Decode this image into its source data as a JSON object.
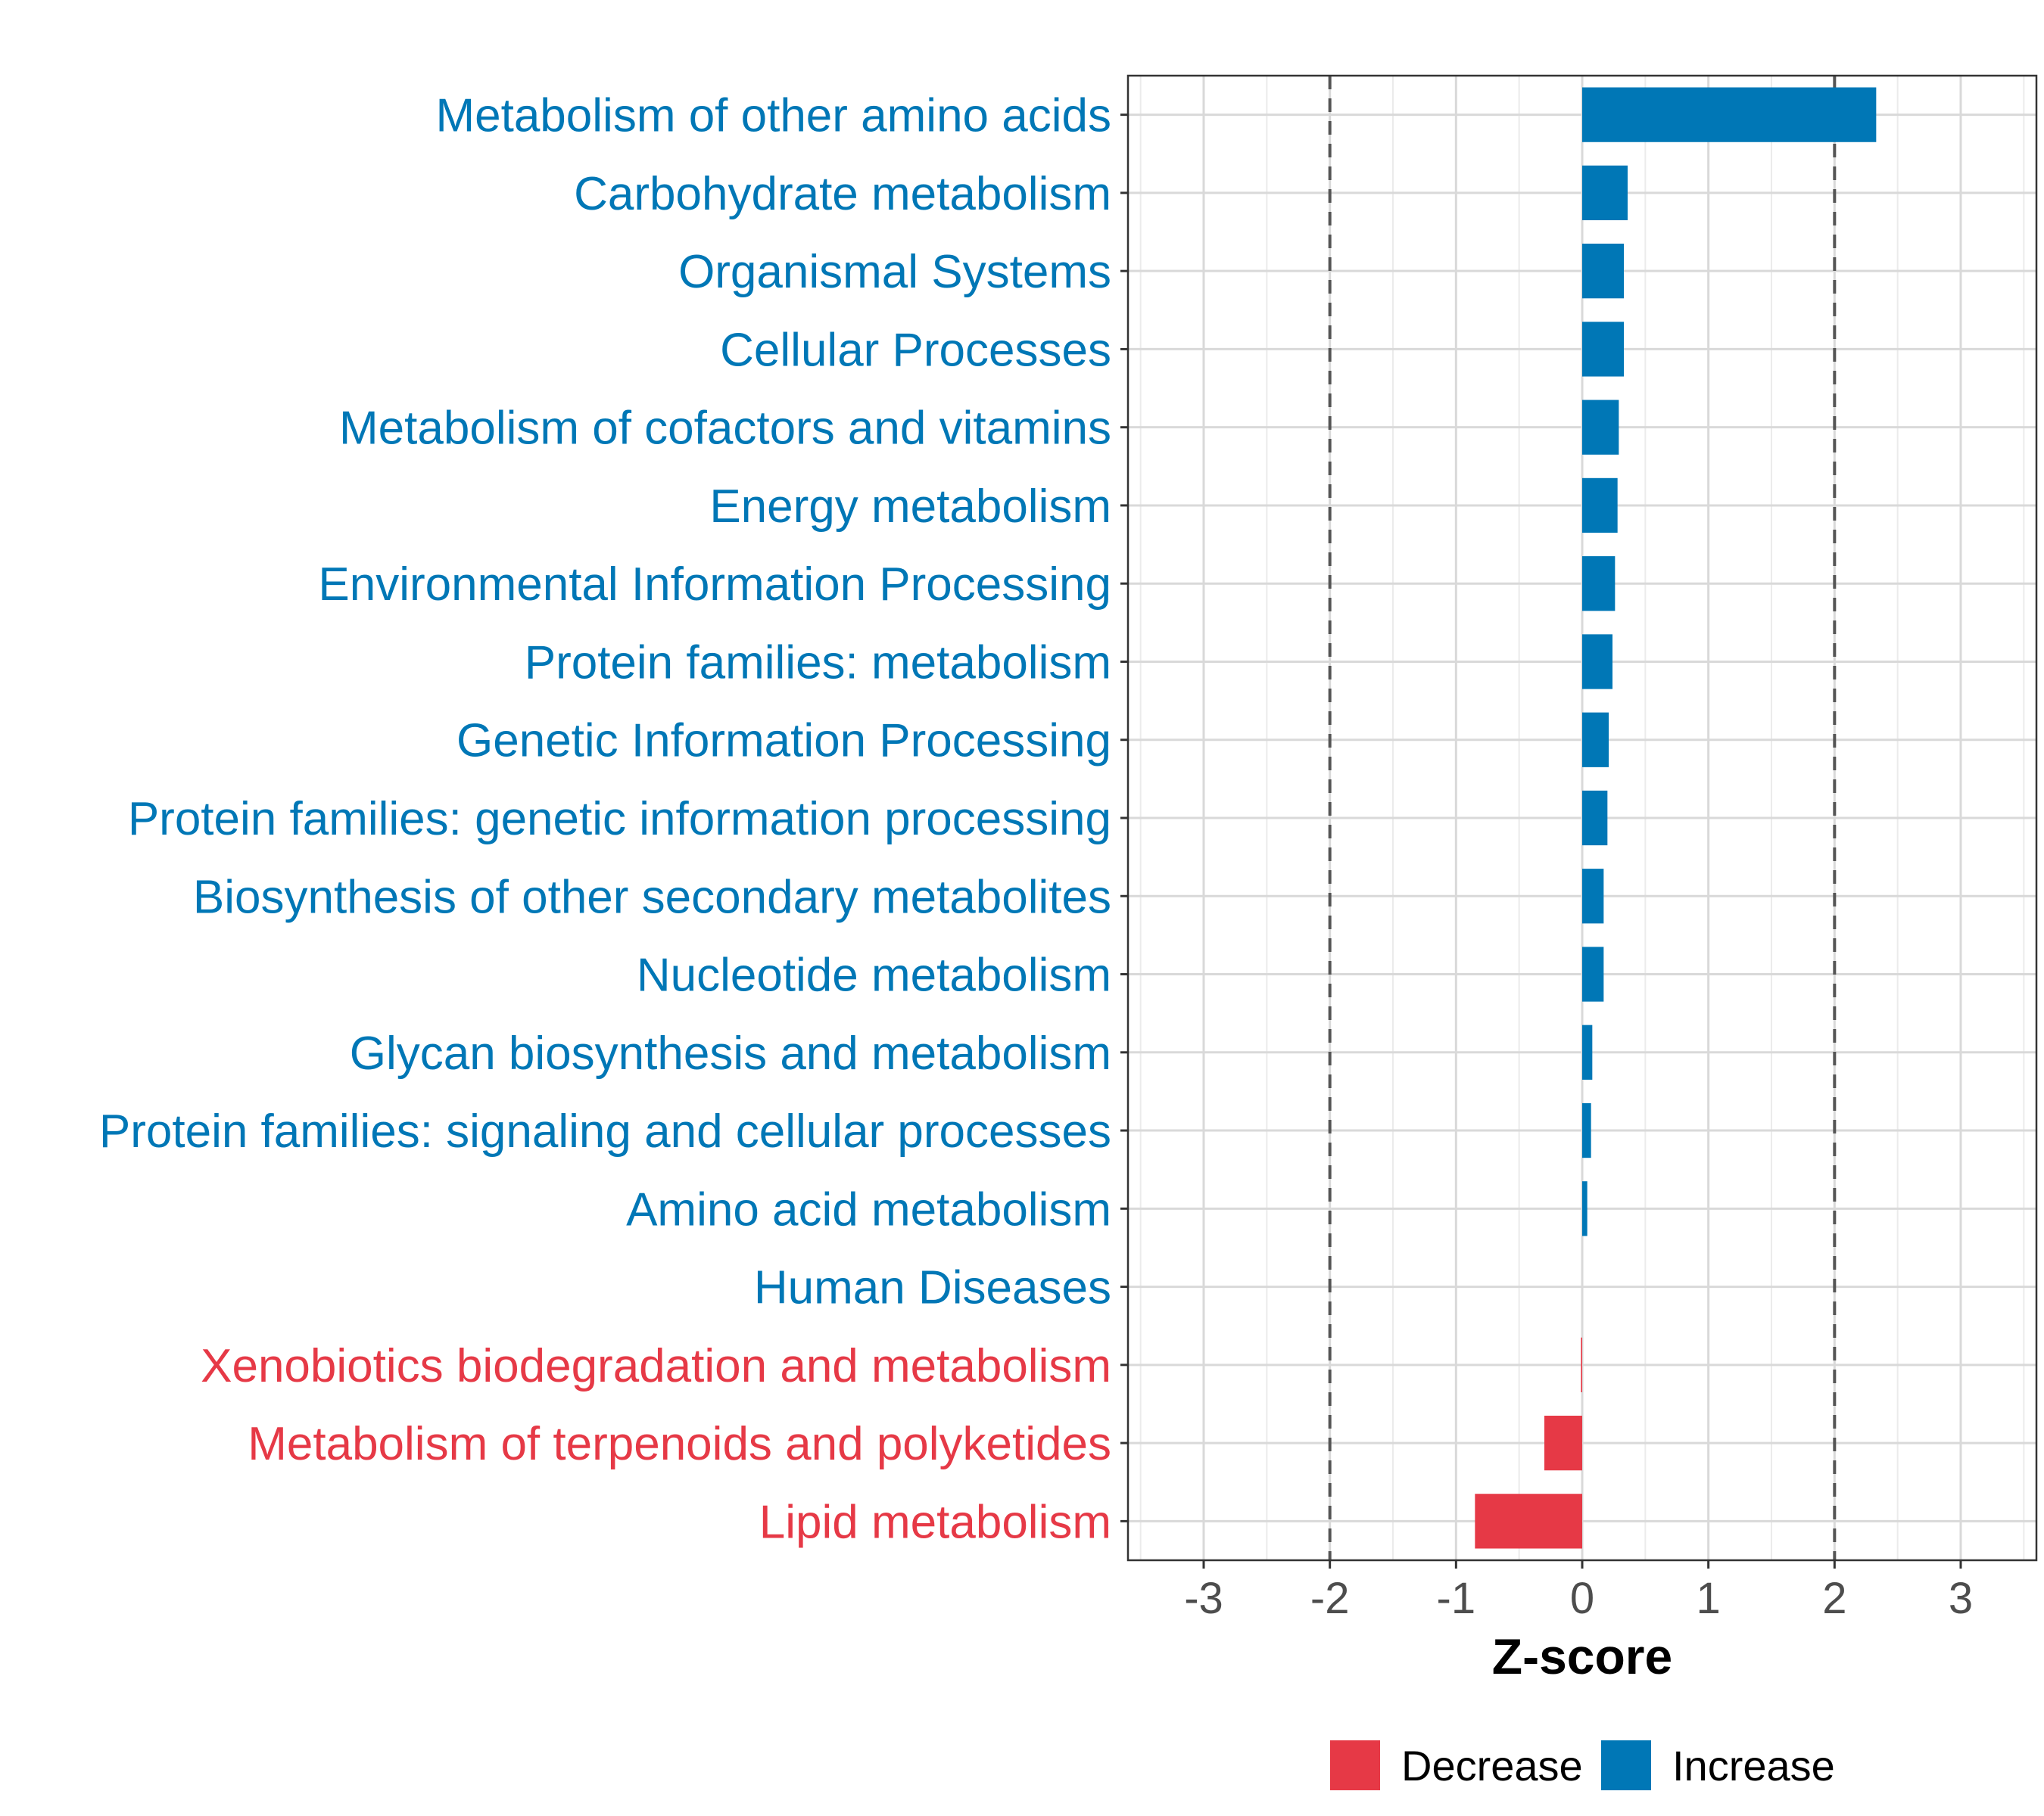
{
  "chart_data": {
    "type": "bar",
    "orientation": "horizontal",
    "title": "",
    "xlabel": "Z-score",
    "ylabel": "",
    "xlim": [
      -3.6,
      3.6
    ],
    "xticks": [
      -3,
      -2,
      -1,
      0,
      1,
      2,
      3
    ],
    "xtick_labels": [
      "-3",
      "-2",
      "-1",
      "0",
      "1",
      "2",
      "3"
    ],
    "reference_lines": [
      -2,
      2
    ],
    "grid": true,
    "legend_position": "bottom",
    "categories": [
      "Metabolism of other amino acids",
      "Carbohydrate metabolism",
      "Organismal Systems",
      "Cellular Processes",
      "Metabolism of cofactors and vitamins",
      "Energy metabolism",
      "Environmental Information Processing",
      "Protein families: metabolism",
      "Genetic Information Processing",
      "Protein families: genetic information processing",
      "Biosynthesis of other secondary metabolites",
      "Nucleotide metabolism",
      "Glycan biosynthesis and metabolism",
      "Protein families: signaling and cellular processes",
      "Amino acid metabolism",
      "Human Diseases",
      "Xenobiotics biodegradation and metabolism",
      "Metabolism of terpenoids and polyketides",
      "Lipid metabolism"
    ],
    "values": [
      2.33,
      0.36,
      0.33,
      0.33,
      0.29,
      0.28,
      0.26,
      0.24,
      0.21,
      0.2,
      0.17,
      0.17,
      0.08,
      0.07,
      0.04,
      0.0,
      -0.01,
      -0.3,
      -0.85
    ],
    "groups": [
      "Increase",
      "Increase",
      "Increase",
      "Increase",
      "Increase",
      "Increase",
      "Increase",
      "Increase",
      "Increase",
      "Increase",
      "Increase",
      "Increase",
      "Increase",
      "Increase",
      "Increase",
      "Increase",
      "Decrease",
      "Decrease",
      "Decrease"
    ],
    "legend": [
      {
        "name": "Decrease",
        "color": "#E63946"
      },
      {
        "name": "Increase",
        "color": "#0077B6"
      }
    ]
  }
}
